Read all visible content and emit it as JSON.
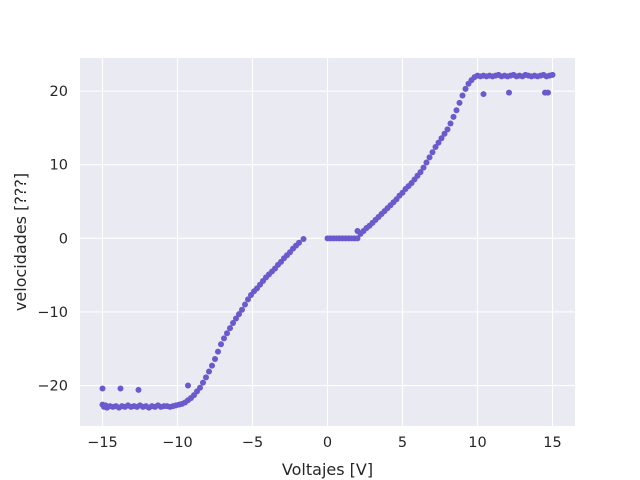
{
  "chart_data": {
    "type": "scatter",
    "title": "",
    "xlabel": "Voltajes [V]",
    "ylabel": "velocidades [???]",
    "xlim": [
      -16.5,
      16.5
    ],
    "ylim": [
      -25.5,
      24.5
    ],
    "xticks": [
      -15,
      -10,
      -5,
      0,
      5,
      10,
      15
    ],
    "yticks": [
      -20,
      -10,
      0,
      10,
      20
    ],
    "xtick_labels": [
      "−15",
      "−10",
      "−5",
      "0",
      "5",
      "10",
      "15"
    ],
    "ytick_labels": [
      "−20",
      "−10",
      "0",
      "10",
      "20"
    ],
    "grid": true,
    "background": "#eaeaf2",
    "marker_color": "#6a5acd",
    "series": [
      {
        "points": [
          [
            -15.0,
            -22.6
          ],
          [
            -14.9,
            -22.9
          ],
          [
            -14.8,
            -22.7
          ],
          [
            -14.7,
            -23.0
          ],
          [
            -14.5,
            -22.8
          ],
          [
            -14.3,
            -22.9
          ],
          [
            -14.1,
            -22.8
          ],
          [
            -13.9,
            -23.0
          ],
          [
            -13.7,
            -22.8
          ],
          [
            -13.5,
            -22.9
          ],
          [
            -13.3,
            -22.7
          ],
          [
            -13.1,
            -22.9
          ],
          [
            -12.9,
            -22.8
          ],
          [
            -12.7,
            -22.9
          ],
          [
            -12.5,
            -22.7
          ],
          [
            -12.3,
            -22.9
          ],
          [
            -12.1,
            -22.8
          ],
          [
            -11.9,
            -23.0
          ],
          [
            -11.7,
            -22.8
          ],
          [
            -11.5,
            -22.9
          ],
          [
            -11.3,
            -22.7
          ],
          [
            -11.1,
            -22.9
          ],
          [
            -10.9,
            -22.8
          ],
          [
            -10.7,
            -22.8
          ],
          [
            -10.5,
            -22.9
          ],
          [
            -10.3,
            -22.8
          ],
          [
            -10.1,
            -22.7
          ],
          [
            -9.9,
            -22.6
          ],
          [
            -9.7,
            -22.5
          ],
          [
            -9.5,
            -22.3
          ],
          [
            -9.3,
            -22.0
          ],
          [
            -9.1,
            -21.7
          ],
          [
            -8.9,
            -21.3
          ],
          [
            -8.7,
            -20.8
          ],
          [
            -8.5,
            -20.3
          ],
          [
            -8.3,
            -19.6
          ],
          [
            -8.1,
            -18.9
          ],
          [
            -7.9,
            -18.1
          ],
          [
            -7.7,
            -17.3
          ],
          [
            -7.5,
            -16.4
          ],
          [
            -7.3,
            -15.4
          ],
          [
            -7.1,
            -14.4
          ],
          [
            -6.9,
            -13.6
          ],
          [
            -6.7,
            -12.9
          ],
          [
            -6.5,
            -12.2
          ],
          [
            -6.3,
            -11.5
          ],
          [
            -6.1,
            -10.9
          ],
          [
            -5.9,
            -10.3
          ],
          [
            -5.7,
            -9.7
          ],
          [
            -5.5,
            -9.0
          ],
          [
            -5.3,
            -8.3
          ],
          [
            -5.1,
            -7.7
          ],
          [
            -4.9,
            -7.2
          ],
          [
            -4.7,
            -6.8
          ],
          [
            -4.5,
            -6.3
          ],
          [
            -4.3,
            -5.8
          ],
          [
            -4.1,
            -5.3
          ],
          [
            -3.9,
            -4.9
          ],
          [
            -3.7,
            -4.5
          ],
          [
            -3.5,
            -4.1
          ],
          [
            -3.3,
            -3.6
          ],
          [
            -3.1,
            -3.2
          ],
          [
            -2.9,
            -2.7
          ],
          [
            -2.7,
            -2.3
          ],
          [
            -2.5,
            -1.9
          ],
          [
            -2.3,
            -1.4
          ],
          [
            -2.1,
            -1.0
          ],
          [
            -1.9,
            -0.6
          ],
          [
            -1.6,
            -0.1
          ],
          [
            -15.0,
            -20.4
          ],
          [
            -13.8,
            -20.4
          ],
          [
            -12.6,
            -20.6
          ],
          [
            -9.3,
            -20.0
          ],
          [
            0.0,
            0.0
          ],
          [
            0.2,
            0.0
          ],
          [
            0.4,
            0.0
          ],
          [
            0.6,
            0.0
          ],
          [
            0.8,
            0.0
          ],
          [
            1.0,
            0.0
          ],
          [
            1.2,
            0.0
          ],
          [
            1.4,
            0.0
          ],
          [
            1.6,
            0.0
          ],
          [
            1.8,
            0.0
          ],
          [
            2.0,
            0.0
          ],
          [
            2.0,
            1.0
          ],
          [
            2.2,
            0.6
          ],
          [
            2.4,
            1.0
          ],
          [
            2.6,
            1.4
          ],
          [
            2.8,
            1.7
          ],
          [
            3.0,
            2.1
          ],
          [
            3.2,
            2.5
          ],
          [
            3.4,
            2.9
          ],
          [
            3.6,
            3.3
          ],
          [
            3.8,
            3.7
          ],
          [
            4.0,
            4.1
          ],
          [
            4.2,
            4.5
          ],
          [
            4.4,
            4.9
          ],
          [
            4.6,
            5.3
          ],
          [
            4.8,
            5.8
          ],
          [
            5.0,
            6.2
          ],
          [
            5.2,
            6.7
          ],
          [
            5.4,
            7.1
          ],
          [
            5.6,
            7.5
          ],
          [
            5.8,
            8.0
          ],
          [
            6.0,
            8.5
          ],
          [
            6.2,
            9.0
          ],
          [
            6.4,
            9.6
          ],
          [
            6.6,
            10.3
          ],
          [
            6.8,
            11.0
          ],
          [
            7.0,
            11.7
          ],
          [
            7.2,
            12.4
          ],
          [
            7.4,
            13.0
          ],
          [
            7.6,
            13.6
          ],
          [
            7.8,
            14.2
          ],
          [
            8.0,
            14.8
          ],
          [
            8.2,
            15.6
          ],
          [
            8.4,
            16.5
          ],
          [
            8.6,
            17.4
          ],
          [
            8.8,
            18.4
          ],
          [
            9.0,
            19.4
          ],
          [
            9.2,
            20.3
          ],
          [
            9.4,
            21.0
          ],
          [
            9.6,
            21.5
          ],
          [
            9.8,
            21.9
          ],
          [
            10.0,
            22.1
          ],
          [
            10.2,
            22.0
          ],
          [
            10.4,
            22.1
          ],
          [
            10.6,
            22.0
          ],
          [
            10.8,
            22.1
          ],
          [
            11.0,
            22.0
          ],
          [
            11.2,
            22.1
          ],
          [
            11.4,
            22.2
          ],
          [
            11.6,
            22.0
          ],
          [
            11.8,
            22.1
          ],
          [
            12.0,
            22.0
          ],
          [
            12.2,
            22.1
          ],
          [
            12.4,
            22.2
          ],
          [
            12.6,
            22.0
          ],
          [
            12.8,
            22.1
          ],
          [
            13.0,
            22.0
          ],
          [
            13.2,
            22.2
          ],
          [
            13.4,
            22.1
          ],
          [
            13.6,
            22.0
          ],
          [
            13.8,
            22.1
          ],
          [
            14.0,
            22.0
          ],
          [
            14.2,
            22.1
          ],
          [
            14.4,
            22.2
          ],
          [
            14.6,
            22.0
          ],
          [
            14.8,
            22.1
          ],
          [
            15.0,
            22.2
          ],
          [
            10.4,
            19.6
          ],
          [
            12.1,
            19.8
          ],
          [
            14.5,
            19.8
          ],
          [
            14.7,
            19.8
          ]
        ]
      }
    ]
  }
}
